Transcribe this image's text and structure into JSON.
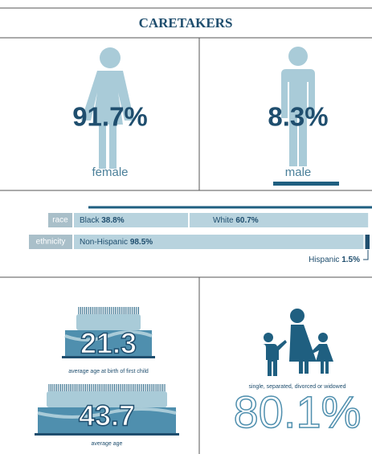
{
  "header": {
    "title": "CARETAKERS"
  },
  "gender": [
    {
      "value_label": "91.7%",
      "label": "female"
    },
    {
      "value_label": "8.3%",
      "label": "male"
    }
  ],
  "race": {
    "label": "race",
    "segments": [
      {
        "name": "Black",
        "value": 38.8,
        "value_label": "38.8%"
      },
      {
        "name": "White",
        "value": 60.7,
        "value_label": "60.7%"
      }
    ]
  },
  "ethnicity": {
    "label": "ethnicity",
    "segments": [
      {
        "name": "Non-Hispanic",
        "value": 98.5,
        "value_label": "98.5%"
      },
      {
        "name": "Hispanic",
        "value": 1.5,
        "value_label": "1.5%"
      }
    ]
  },
  "ages": [
    {
      "value_label": "21.3",
      "caption": "average age at birth of first child"
    },
    {
      "value_label": "43.7",
      "caption": "average age"
    }
  ],
  "marital": {
    "caption": "single, separated, divorced or widowed",
    "value_label": "80.1%"
  }
}
